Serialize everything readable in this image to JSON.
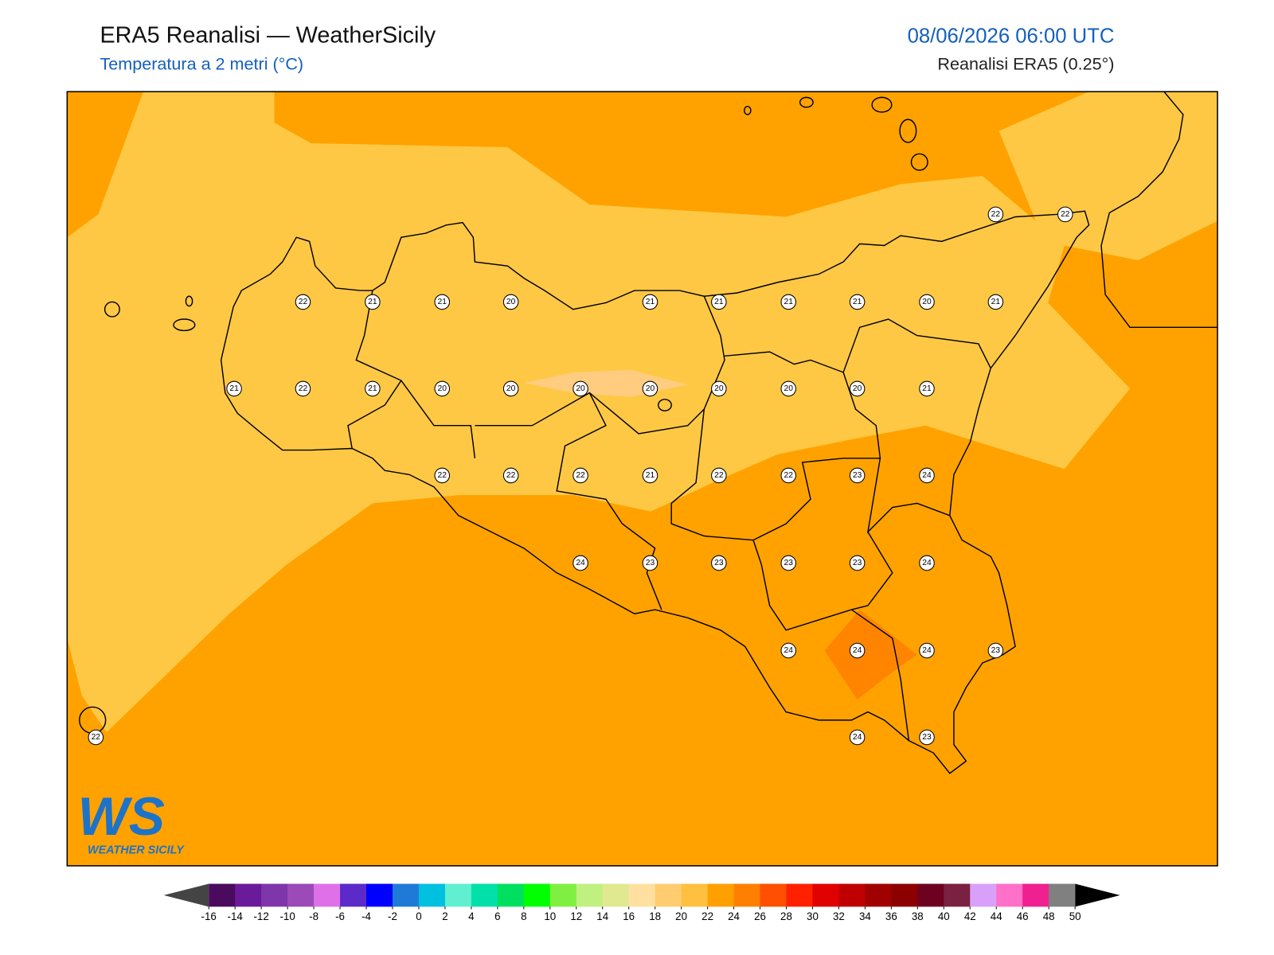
{
  "header": {
    "title": "ERA5 Reanalisi — WeatherSicily",
    "subtitle": "Temperatura a 2 metri (°C)",
    "datetime": "08/06/2026 06:00 UTC",
    "source": "Reanalisi ERA5 (0.25°)"
  },
  "stations": [
    22,
    22,
    22,
    21,
    21,
    20,
    21,
    21,
    21,
    21,
    20,
    21,
    21,
    22,
    21,
    20,
    20,
    20,
    20,
    20,
    20,
    20,
    21,
    22,
    22,
    22,
    21,
    22,
    22,
    23,
    24,
    24,
    23,
    23,
    23,
    23,
    24,
    24,
    24,
    24,
    23,
    22,
    24,
    23
  ],
  "colorbar": {
    "ticks": [
      -16,
      -14,
      -12,
      -10,
      -8,
      -6,
      -4,
      -2,
      0,
      2,
      4,
      6,
      8,
      10,
      12,
      14,
      16,
      18,
      20,
      22,
      24,
      26,
      28,
      30,
      32,
      34,
      36,
      38,
      40,
      42,
      44,
      46,
      48,
      50
    ],
    "colors": [
      "#4a0a5e",
      "#6a1b9a",
      "#7e36aa",
      "#9c4ab8",
      "#e070e8",
      "#5b2ac8",
      "#0000ff",
      "#1e7ad6",
      "#00c0e0",
      "#60f0d0",
      "#00e0a8",
      "#00e060",
      "#00ff00",
      "#80f040",
      "#c0f080",
      "#e0e890",
      "#ffe0a0",
      "#ffcc70",
      "#ffc040",
      "#ffa000",
      "#ff8000",
      "#ff5000",
      "#ff2000",
      "#e00000",
      "#c00000",
      "#a00000",
      "#8c0000",
      "#6e0020",
      "#7a2040",
      "#d8a0f8",
      "#ff70c8",
      "#f02090",
      "#808080",
      "#333333"
    ],
    "under_color": "#444444",
    "over_color": "#000000"
  },
  "logo": {
    "letters": "WS",
    "name": "WEATHER SICILY"
  }
}
